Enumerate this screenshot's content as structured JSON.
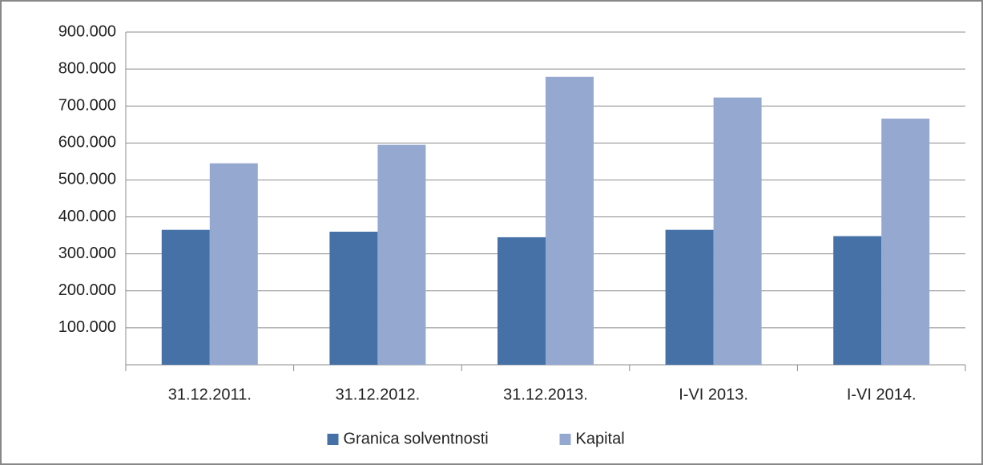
{
  "chart_data": {
    "type": "bar",
    "categories": [
      "31.12.2011.",
      "31.12.2012.",
      "31.12.2013.",
      "I-VI 2013.",
      "I-VI 2014."
    ],
    "series": [
      {
        "name": "Granica solventnosti",
        "color": "#4571a6",
        "values": [
          365000,
          360000,
          345000,
          365000,
          348000
        ]
      },
      {
        "name": "Kapital",
        "color": "#95a9d0",
        "values": [
          545000,
          595000,
          779000,
          723000,
          666000
        ]
      }
    ],
    "ylim": [
      0,
      900000
    ],
    "yticks": [
      {
        "value": 100000,
        "label": "100.000"
      },
      {
        "value": 200000,
        "label": "200.000"
      },
      {
        "value": 300000,
        "label": "300.000"
      },
      {
        "value": 400000,
        "label": "400.000"
      },
      {
        "value": 500000,
        "label": "500.000"
      },
      {
        "value": 600000,
        "label": "600.000"
      },
      {
        "value": 700000,
        "label": "700.000"
      },
      {
        "value": 800000,
        "label": "800.000"
      },
      {
        "value": 900000,
        "label": "900.000"
      }
    ],
    "grid": true,
    "legend": "bottom"
  }
}
